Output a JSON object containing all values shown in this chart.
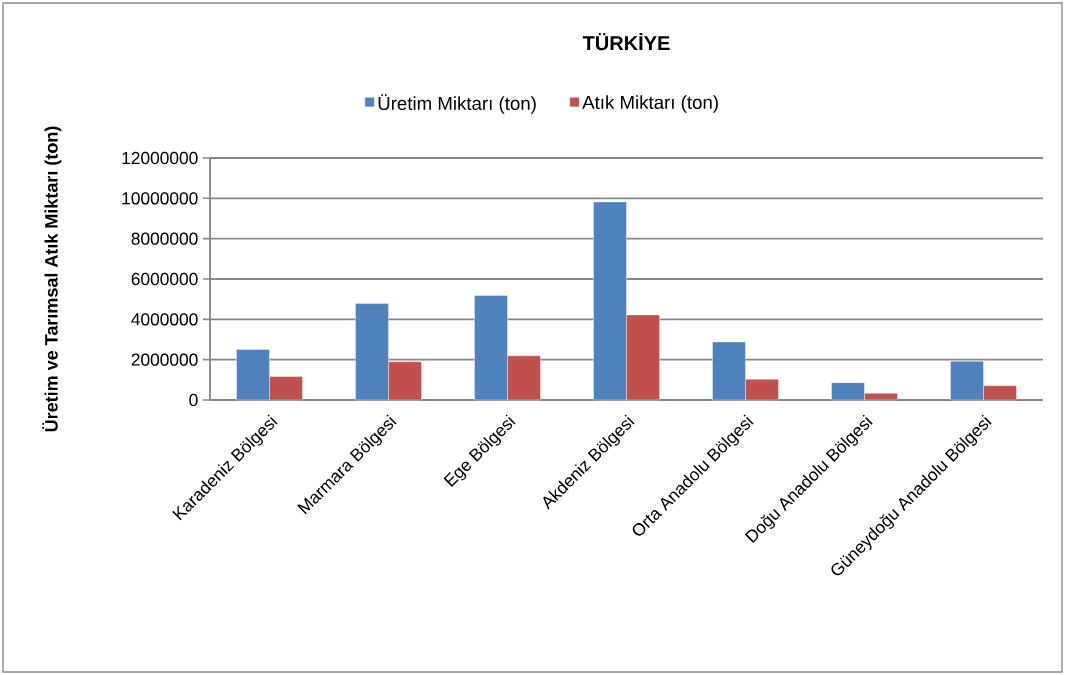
{
  "chart_data": {
    "type": "bar",
    "title": "TÜRKİYE",
    "ylabel": "Üretim ve Tarımsal Atık Miktarı (ton)",
    "categories": [
      "Karadeniz Bölgesi",
      "Marmara Bölgesi",
      "Ege Bölgesi",
      "Akdeniz Bölgesi",
      "Orta Anadolu Bölgesi",
      "Doğu Anadolu Bölgesi",
      "Güneydoğu Anadolu Bölgesi"
    ],
    "series": [
      {
        "name": "Üretim Miktarı (ton)",
        "color": "#4f81bd",
        "values": [
          2500000,
          4780000,
          5180000,
          9820000,
          2880000,
          860000,
          1920000
        ]
      },
      {
        "name": "Atık Miktarı (ton)",
        "color": "#c0504d",
        "values": [
          1160000,
          1900000,
          2190000,
          4220000,
          1030000,
          330000,
          710000
        ]
      }
    ],
    "ylim": [
      0,
      12000000
    ],
    "yticks": [
      0,
      2000000,
      4000000,
      6000000,
      8000000,
      10000000,
      12000000
    ],
    "grid": "y",
    "legend": "top"
  }
}
